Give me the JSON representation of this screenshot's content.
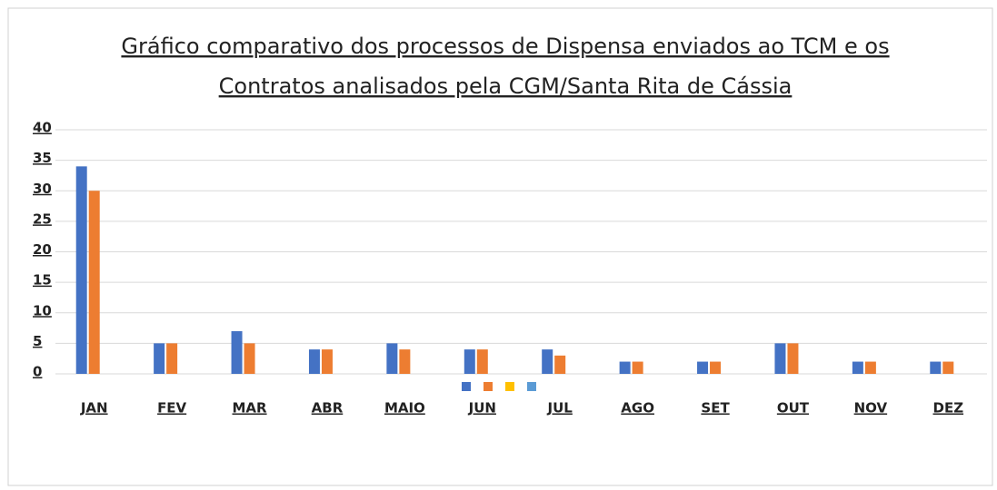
{
  "chart_data": {
    "type": "bar",
    "title": [
      "Gráfico comparativo dos processos de Dispensa enviados ao TCM e os",
      "Contratos analisados pela CGM/Santa Rita de Cássia"
    ],
    "categories": [
      "JAN",
      "FEV",
      "MAR",
      "ABR",
      "MAIO",
      "JUN",
      "JUL",
      "AGO",
      "SET",
      "OUT",
      "NOV",
      "DEZ"
    ],
    "series": [
      {
        "color": "#4472c4",
        "values": [
          34,
          5,
          7,
          4,
          5,
          4,
          4,
          2,
          2,
          5,
          2,
          2
        ]
      },
      {
        "color": "#ed7d31",
        "values": [
          30,
          5,
          5,
          4,
          4,
          4,
          3,
          2,
          2,
          5,
          2,
          2
        ]
      },
      {
        "color": "#ffc000",
        "values": [
          null,
          null,
          null,
          null,
          null,
          null,
          null,
          null,
          null,
          null,
          null,
          null
        ]
      },
      {
        "color": "#5b9bd5",
        "values": [
          null,
          null,
          null,
          null,
          null,
          null,
          null,
          null,
          null,
          null,
          null,
          null
        ]
      }
    ],
    "ylim": [
      0,
      40
    ],
    "yticks": [
      0,
      5,
      10,
      15,
      20,
      25,
      30,
      35,
      40
    ],
    "grid": true,
    "legend": "bottom"
  }
}
